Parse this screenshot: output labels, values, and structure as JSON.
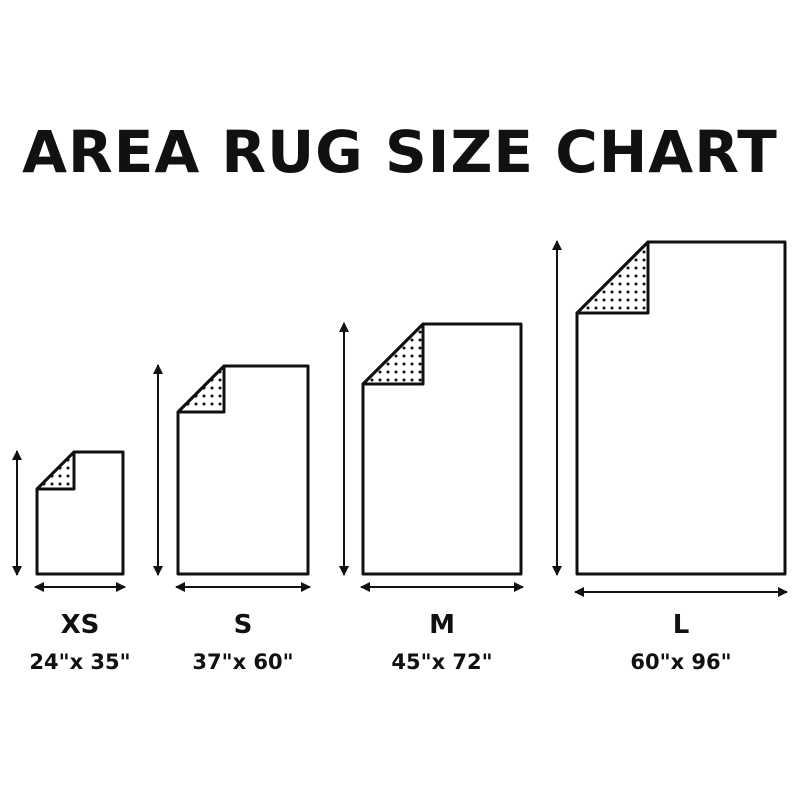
{
  "title": "AREA RUG SIZE CHART",
  "colors": {
    "ink": "#111111",
    "background": "#ffffff"
  },
  "rugs": [
    {
      "size": "XS",
      "dimensions": "24\"x 35\""
    },
    {
      "size": "S",
      "dimensions": "37\"x 60\""
    },
    {
      "size": "M",
      "dimensions": "45\"x 72\""
    },
    {
      "size": "L",
      "dimensions": "60\"x 96\""
    }
  ]
}
